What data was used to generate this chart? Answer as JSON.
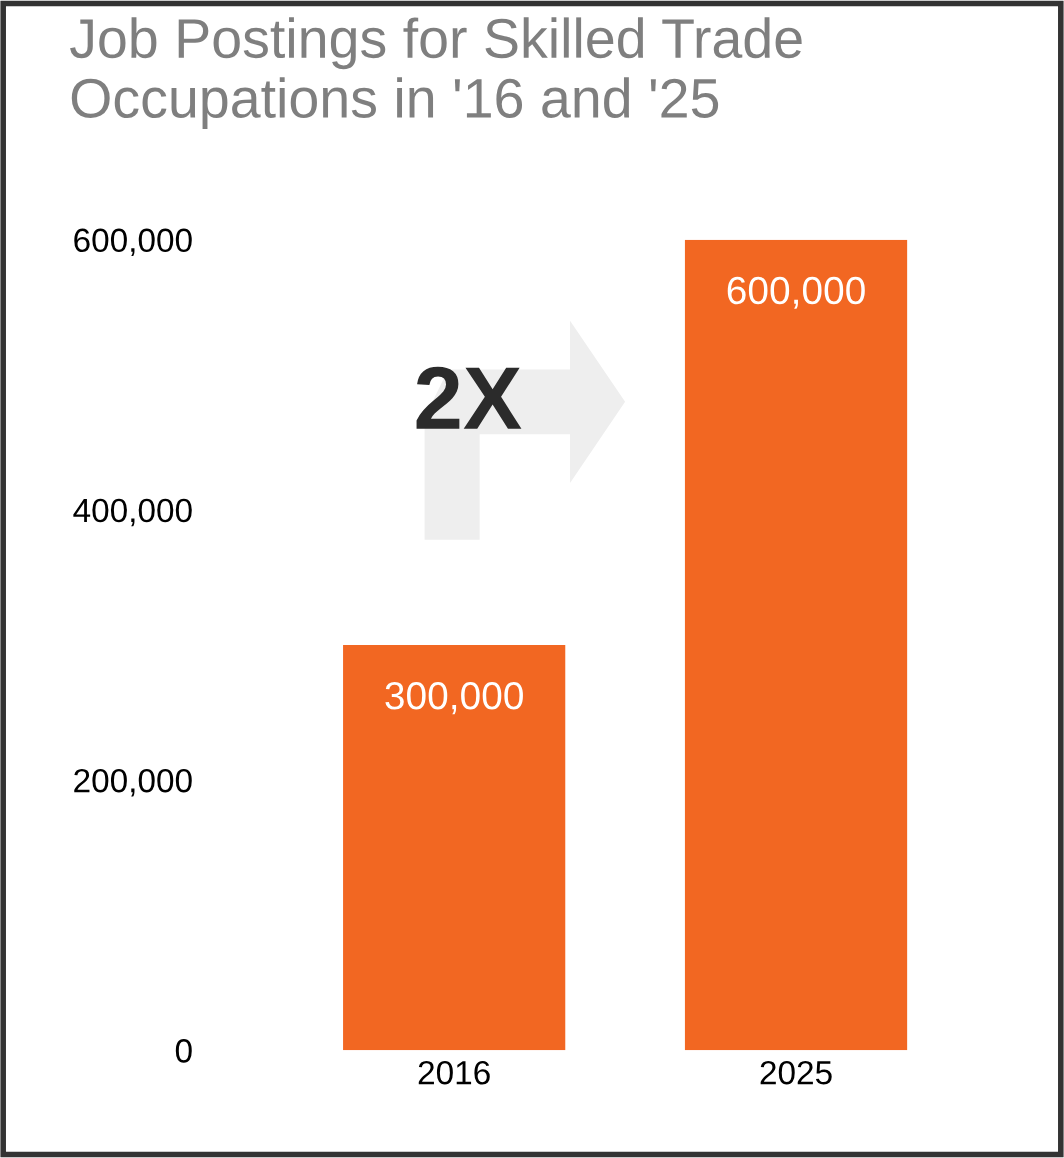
{
  "chart_data": {
    "type": "bar",
    "title": "Job Postings for Skilled Trade Occupations in '16 and '25",
    "categories": [
      "2016",
      "2025"
    ],
    "values": [
      300000,
      600000
    ],
    "color": "#f26722",
    "value_labels": [
      "300,000",
      "600,000"
    ],
    "ylim": [
      0,
      600000
    ],
    "yticks": [
      0,
      {
        "value": 200000,
        "label": "200,000"
      },
      {
        "value": 400000,
        "label": "400,000"
      },
      {
        "value": 600000,
        "label": "600,000"
      }
    ],
    "grid": false,
    "annotations": [
      "2X"
    ]
  }
}
